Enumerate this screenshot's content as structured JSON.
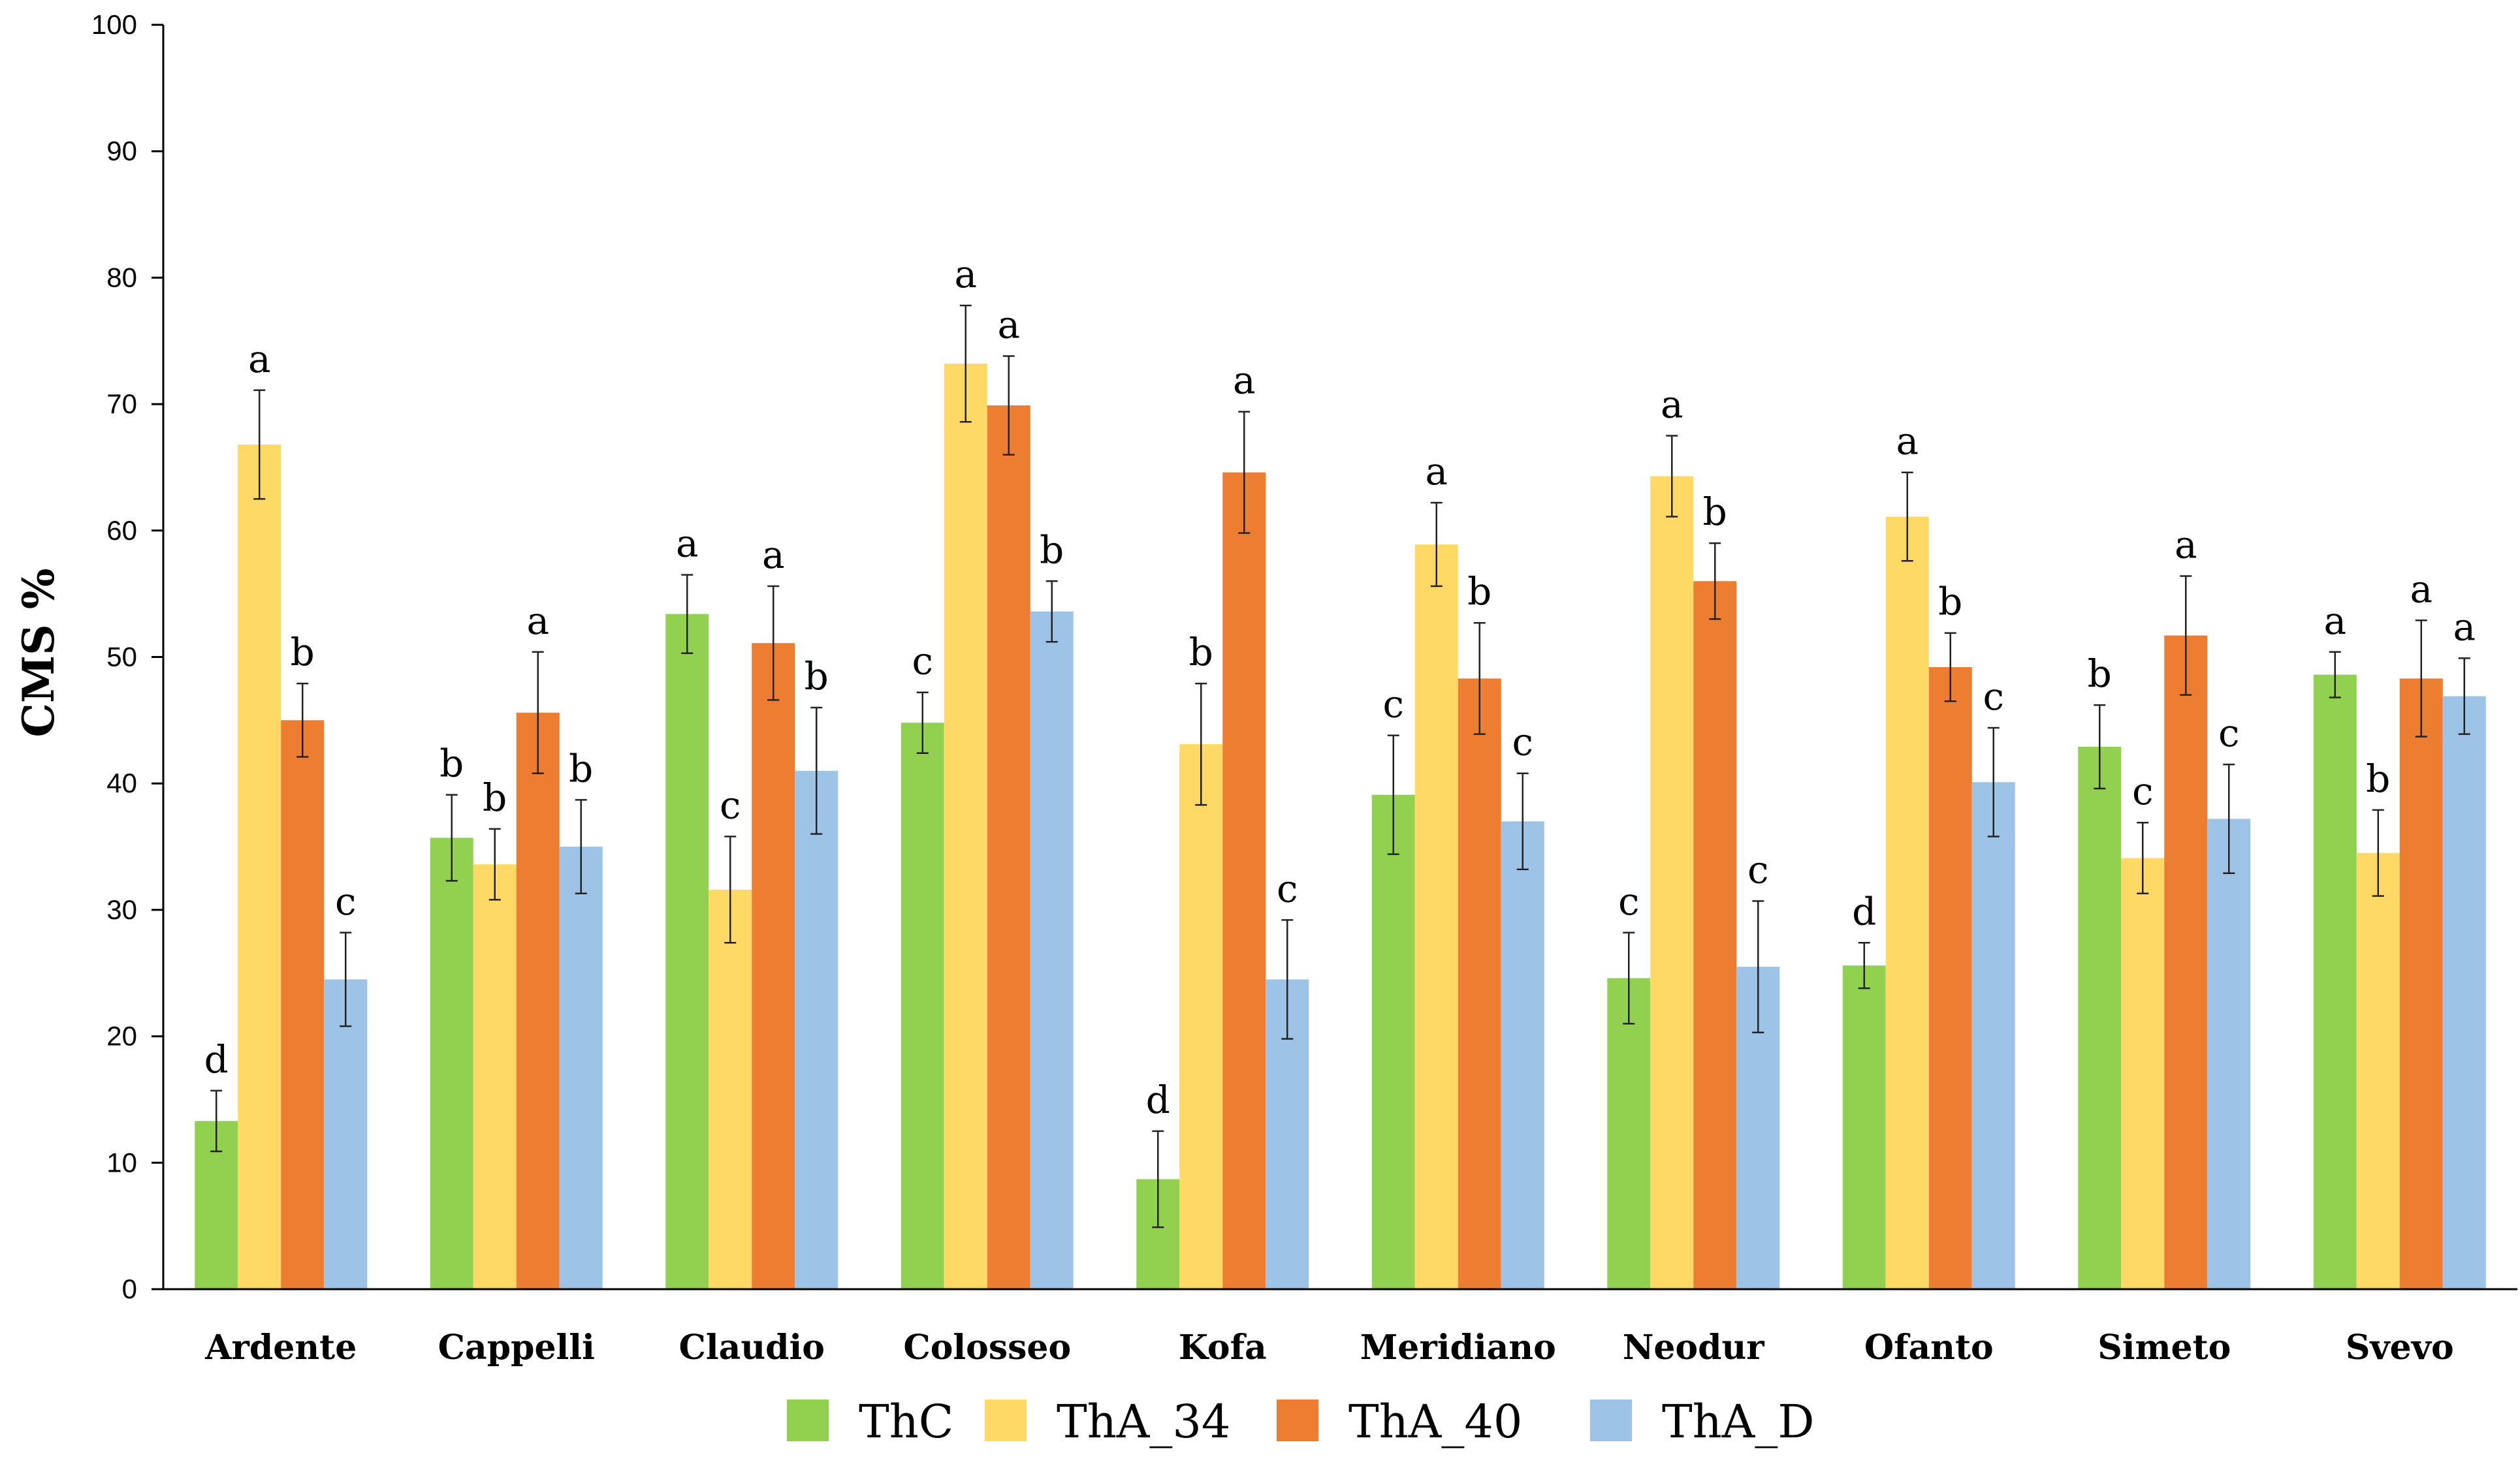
{
  "chart_data": {
    "type": "bar",
    "title": "",
    "xlabel": "",
    "ylabel": "CMS %",
    "ylim": [
      0,
      100
    ],
    "yticks": [
      0,
      10,
      20,
      30,
      40,
      50,
      60,
      70,
      80,
      90,
      100
    ],
    "grid": false,
    "legend_position": "bottom",
    "categories": [
      "Ardente",
      "Cappelli",
      "Claudio",
      "Colosseo",
      "Kofa",
      "Meridiano",
      "Neodur",
      "Ofanto",
      "Simeto",
      "Svevo"
    ],
    "series": [
      {
        "name": "ThC",
        "color": "#92d050",
        "values": [
          13.3,
          35.7,
          53.4,
          44.8,
          8.7,
          39.1,
          24.6,
          25.6,
          42.9,
          48.6
        ],
        "errors": [
          2.4,
          3.4,
          3.1,
          2.4,
          3.8,
          4.7,
          3.6,
          1.8,
          3.3,
          1.8
        ],
        "labels": [
          "d",
          "b",
          "a",
          "c",
          "d",
          "c",
          "c",
          "d",
          "b",
          "a"
        ]
      },
      {
        "name": "ThA_34",
        "color": "#ffd966",
        "values": [
          66.8,
          33.6,
          31.6,
          73.2,
          43.1,
          58.9,
          64.3,
          61.1,
          34.1,
          34.5
        ],
        "errors": [
          4.3,
          2.8,
          4.2,
          4.6,
          4.8,
          3.3,
          3.2,
          3.5,
          2.8,
          3.4
        ],
        "labels": [
          "a",
          "b",
          "c",
          "a",
          "b",
          "a",
          "a",
          "a",
          "c",
          "b"
        ]
      },
      {
        "name": "ThA_40",
        "color": "#ed7d31",
        "values": [
          45.0,
          45.6,
          51.1,
          69.9,
          64.6,
          48.3,
          56.0,
          49.2,
          51.7,
          48.3
        ],
        "errors": [
          2.9,
          4.8,
          4.5,
          3.9,
          4.8,
          4.4,
          3.0,
          2.7,
          4.7,
          4.6
        ],
        "labels": [
          "b",
          "a",
          "a",
          "a",
          "a",
          "b",
          "b",
          "b",
          "a",
          "a"
        ]
      },
      {
        "name": "ThA_D",
        "color": "#9dc3e6",
        "values": [
          24.5,
          35.0,
          41.0,
          53.6,
          24.5,
          37.0,
          25.5,
          40.1,
          37.2,
          46.9
        ],
        "errors": [
          3.7,
          3.7,
          5.0,
          2.4,
          4.7,
          3.8,
          5.2,
          4.3,
          4.3,
          3.0
        ],
        "labels": [
          "c",
          "b",
          "b",
          "b",
          "c",
          "c",
          "c",
          "c",
          "c",
          "a"
        ]
      }
    ]
  }
}
